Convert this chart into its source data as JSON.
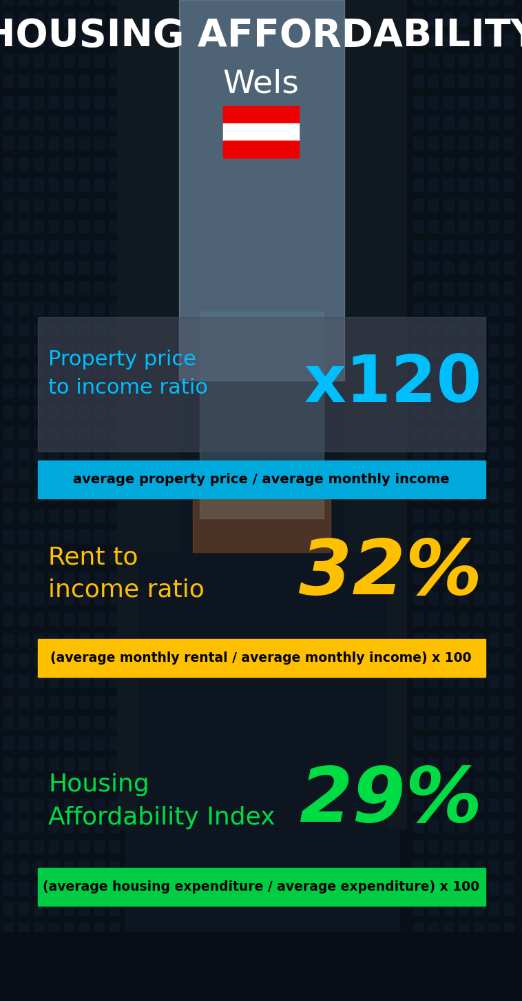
{
  "title_line1": "HOUSING AFFORDABILITY",
  "title_line2": "Wels",
  "background_color": "#0a1628",
  "section1_label": "Property price\nto income ratio",
  "section1_value": "x120",
  "section1_label_color": "#00bfff",
  "section1_value_color": "#00bfff",
  "section1_banner_text": "average property price / average monthly income",
  "section1_banner_bg": "#00aadd",
  "section1_banner_text_color": "#000000",
  "section2_label": "Rent to\nincome ratio",
  "section2_value": "32%",
  "section2_label_color": "#ffc000",
  "section2_value_color": "#ffc000",
  "section2_banner_text": "(average monthly rental / average monthly income) x 100",
  "section2_banner_bg": "#ffc000",
  "section2_banner_text_color": "#000000",
  "section3_label": "Housing\nAffordability Index",
  "section3_value": "29%",
  "section3_label_color": "#00dd44",
  "section3_value_color": "#00dd44",
  "section3_banner_text": "(average housing expenditure / average expenditure) x 100",
  "section3_banner_bg": "#00cc44",
  "section3_banner_text_color": "#000000",
  "title_color": "#ffffff",
  "city_color": "#ffffff",
  "flag_colors": [
    "#ee0000",
    "#ffffff",
    "#ee0000"
  ],
  "overlay_color": "#4a5060",
  "overlay_alpha": 0.5
}
